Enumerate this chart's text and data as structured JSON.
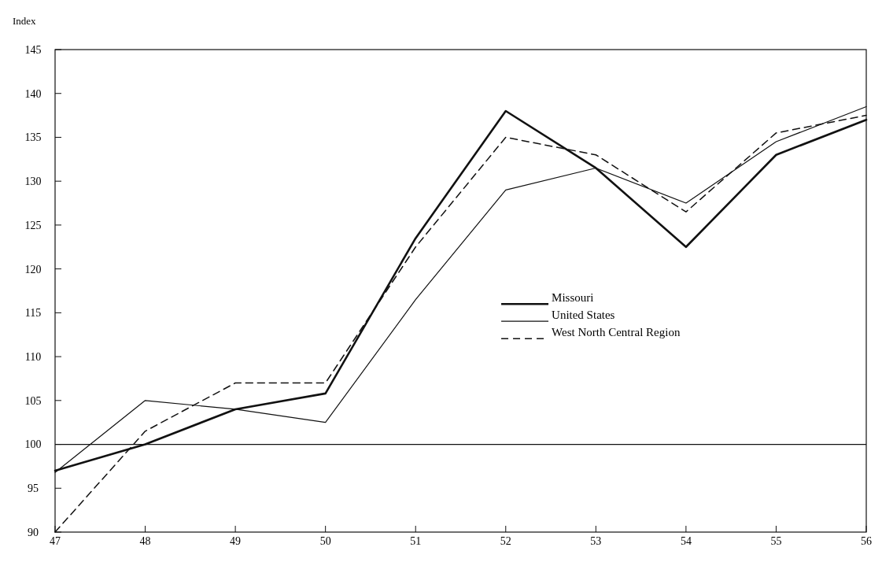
{
  "chart_data": {
    "type": "line",
    "ylabel": "Index",
    "x": [
      47,
      48,
      49,
      50,
      51,
      52,
      53,
      54,
      55,
      56
    ],
    "xlim": [
      47,
      56
    ],
    "xticks": [
      47,
      48,
      49,
      50,
      51,
      52,
      53,
      54,
      55,
      56
    ],
    "ylim": [
      90,
      145
    ],
    "yticks": [
      90,
      95,
      100,
      105,
      110,
      115,
      120,
      125,
      130,
      135,
      140,
      145
    ],
    "series": [
      {
        "name": "Missouri",
        "color": "#111111",
        "line_style": "solid",
        "values": [
          97,
          100,
          104,
          105.8,
          123.5,
          138,
          131.5,
          122.5,
          133,
          137
        ]
      },
      {
        "name": "United States",
        "color": "#111111",
        "line_style": "solid",
        "values": [
          96.8,
          105,
          104,
          102.5,
          116.5,
          129,
          131.5,
          127.5,
          134.5,
          138.5
        ]
      },
      {
        "name": "West North Central Region",
        "color": "#111111",
        "line_style": "dashed",
        "values": [
          90,
          101.5,
          107,
          107,
          122.5,
          135,
          133,
          126.5,
          135.5,
          137.5
        ]
      }
    ],
    "ref_lines": [
      {
        "axis": "y",
        "value": 100,
        "color": "#111111"
      }
    ],
    "legend": "right",
    "grid": false
  }
}
